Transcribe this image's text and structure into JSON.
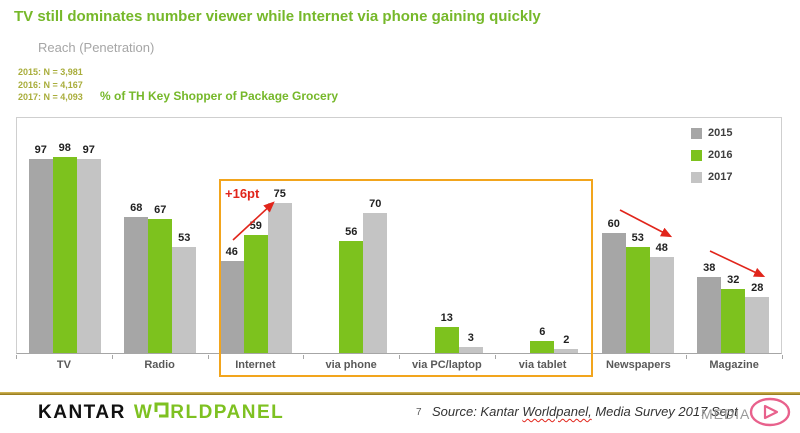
{
  "slide": {
    "title": "TV still dominates number viewer while Internet via phone gaining quickly",
    "subtitle": "Reach (Penetration)",
    "sample_sizes": [
      "2015: N = 3,981",
      "2016: N = 4,167",
      "2017: N = 4,093"
    ],
    "base_note": "% of TH Key Shopper of Package Grocery"
  },
  "chart_data": {
    "type": "bar",
    "title": "Reach (Penetration)",
    "categories": [
      "TV",
      "Radio",
      "Internet",
      "via phone",
      "via PC/laptop",
      "via tablet",
      "Newspapers",
      "Magazine"
    ],
    "series": [
      {
        "name": "2015",
        "color": "#a6a6a6",
        "values": [
          97,
          68,
          46,
          null,
          null,
          null,
          60,
          38
        ]
      },
      {
        "name": "2016",
        "color": "#7dc21e",
        "values": [
          98,
          67,
          59,
          56,
          13,
          6,
          53,
          32
        ]
      },
      {
        "name": "2017",
        "color": "#c4c4c4",
        "values": [
          97,
          53,
          75,
          70,
          3,
          2,
          48,
          28
        ]
      }
    ],
    "ylim": [
      0,
      100
    ],
    "grid": false,
    "legend_position": "top-right",
    "legend_labels": [
      "2015",
      "2016",
      "2017"
    ],
    "annotations": [
      {
        "type": "increase-arrow",
        "target": "Internet",
        "text": "+16pt",
        "color": "#e1251b"
      },
      {
        "type": "decrease-arrow",
        "target": "Newspapers",
        "color": "#e1251b"
      },
      {
        "type": "decrease-arrow",
        "target": "Magazine",
        "color": "#e1251b"
      }
    ],
    "highlight_box_categories": [
      "Internet",
      "via phone",
      "via PC/laptop",
      "via tablet"
    ],
    "highlight_box_color": "#f2a51d"
  },
  "footer": {
    "logo_kantar": "KANTAR",
    "logo_worldpanel_prefix": "W",
    "logo_worldpanel_suffix": "RLDPANEL",
    "page_number": "7",
    "source_prefix": "Source: Kantar ",
    "source_underlined": "Worldpanel,",
    "source_suffix": " Media Survey 2017 Sept",
    "section_label": "MEDIA"
  },
  "colors": {
    "title_green": "#76b82a",
    "sample_olive": "#a9ad3b",
    "bar_2015": "#a6a6a6",
    "bar_2016": "#7dc21e",
    "bar_2017": "#c4c4c4",
    "annotation_red": "#e1251b",
    "highlight_orange": "#f2a51d",
    "brand_pink": "#e8618c"
  }
}
